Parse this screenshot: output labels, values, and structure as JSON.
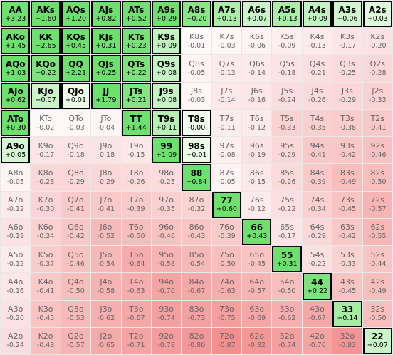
{
  "grid": {
    "rows": [
      [
        {
          "hand": "AA",
          "ev": "+3.23",
          "selected": true
        },
        {
          "hand": "AKs",
          "ev": "+1.60",
          "selected": true
        },
        {
          "hand": "AQs",
          "ev": "+1.20",
          "selected": true
        },
        {
          "hand": "AJs",
          "ev": "+0.82",
          "selected": true
        },
        {
          "hand": "ATs",
          "ev": "+0.52",
          "selected": true
        },
        {
          "hand": "A9s",
          "ev": "+0.29",
          "selected": true
        },
        {
          "hand": "A8s",
          "ev": "+0.20",
          "selected": true
        },
        {
          "hand": "A7s",
          "ev": "+0.13",
          "selected": true
        },
        {
          "hand": "A6s",
          "ev": "+0.07",
          "selected": true
        },
        {
          "hand": "A5s",
          "ev": "+0.13",
          "selected": true
        },
        {
          "hand": "A4s",
          "ev": "+0.09",
          "selected": true
        },
        {
          "hand": "A3s",
          "ev": "+0.06",
          "selected": true
        },
        {
          "hand": "A2s",
          "ev": "+0.03",
          "selected": true
        }
      ],
      [
        {
          "hand": "AKo",
          "ev": "+1.45",
          "selected": true
        },
        {
          "hand": "KK",
          "ev": "+2.65",
          "selected": true
        },
        {
          "hand": "KQs",
          "ev": "+0.45",
          "selected": true
        },
        {
          "hand": "KJs",
          "ev": "+0.31",
          "selected": true
        },
        {
          "hand": "KTs",
          "ev": "+0.23",
          "selected": true
        },
        {
          "hand": "K9s",
          "ev": "+0.09",
          "selected": true
        },
        {
          "hand": "K8s",
          "ev": "-0.01",
          "selected": false
        },
        {
          "hand": "K7s",
          "ev": "-0.03",
          "selected": false
        },
        {
          "hand": "K6s",
          "ev": "-0.06",
          "selected": false
        },
        {
          "hand": "K5s",
          "ev": "-0.09",
          "selected": false
        },
        {
          "hand": "K4s",
          "ev": "-0.13",
          "selected": false
        },
        {
          "hand": "K3s",
          "ev": "-0.17",
          "selected": false
        },
        {
          "hand": "K2s",
          "ev": "-0.20",
          "selected": false
        }
      ],
      [
        {
          "hand": "AQo",
          "ev": "+1.03",
          "selected": true
        },
        {
          "hand": "KQo",
          "ev": "+0.22",
          "selected": true
        },
        {
          "hand": "QQ",
          "ev": "+2.21",
          "selected": true
        },
        {
          "hand": "QJs",
          "ev": "+0.25",
          "selected": true
        },
        {
          "hand": "QTs",
          "ev": "+0.22",
          "selected": true
        },
        {
          "hand": "Q9s",
          "ev": "+0.08",
          "selected": true
        },
        {
          "hand": "Q8s",
          "ev": "-0.05",
          "selected": false
        },
        {
          "hand": "Q7s",
          "ev": "-0.13",
          "selected": false
        },
        {
          "hand": "Q6s",
          "ev": "-0.14",
          "selected": false
        },
        {
          "hand": "Q5s",
          "ev": "-0.18",
          "selected": false
        },
        {
          "hand": "Q4s",
          "ev": "-0.21",
          "selected": false
        },
        {
          "hand": "Q3s",
          "ev": "-0.25",
          "selected": false
        },
        {
          "hand": "Q2s",
          "ev": "-0.28",
          "selected": false
        }
      ],
      [
        {
          "hand": "AJo",
          "ev": "+0.62",
          "selected": true
        },
        {
          "hand": "KJo",
          "ev": "+0.07",
          "selected": true
        },
        {
          "hand": "QJo",
          "ev": "+0.01",
          "selected": true
        },
        {
          "hand": "JJ",
          "ev": "+1.79",
          "selected": true
        },
        {
          "hand": "JTs",
          "ev": "+0.21",
          "selected": true
        },
        {
          "hand": "J9s",
          "ev": "+0.08",
          "selected": true
        },
        {
          "hand": "J8s",
          "ev": "-0.03",
          "selected": false
        },
        {
          "hand": "J7s",
          "ev": "-0.14",
          "selected": false
        },
        {
          "hand": "J6s",
          "ev": "-0.16",
          "selected": false
        },
        {
          "hand": "J5s",
          "ev": "-0.24",
          "selected": false
        },
        {
          "hand": "J4s",
          "ev": "-0.26",
          "selected": false
        },
        {
          "hand": "J3s",
          "ev": "-0.29",
          "selected": false
        },
        {
          "hand": "J2s",
          "ev": "-0.33",
          "selected": false
        }
      ],
      [
        {
          "hand": "ATo",
          "ev": "+0.30",
          "selected": true
        },
        {
          "hand": "KTo",
          "ev": "-0.02",
          "selected": false
        },
        {
          "hand": "QTo",
          "ev": "-0.03",
          "selected": false
        },
        {
          "hand": "JTo",
          "ev": "-0.04",
          "selected": false
        },
        {
          "hand": "TT",
          "ev": "+1.44",
          "selected": true
        },
        {
          "hand": "T9s",
          "ev": "+0.11",
          "selected": true
        },
        {
          "hand": "T8s",
          "ev": "-0.00",
          "selected": true
        },
        {
          "hand": "T7s",
          "ev": "-0.11",
          "selected": false
        },
        {
          "hand": "T6s",
          "ev": "-0.12",
          "selected": false
        },
        {
          "hand": "T5s",
          "ev": "-0.33",
          "selected": false
        },
        {
          "hand": "T4s",
          "ev": "-0.35",
          "selected": false
        },
        {
          "hand": "T3s",
          "ev": "-0.38",
          "selected": false
        },
        {
          "hand": "T2s",
          "ev": "-0.41",
          "selected": false
        }
      ],
      [
        {
          "hand": "A9o",
          "ev": "+0.05",
          "selected": true
        },
        {
          "hand": "K9o",
          "ev": "-0.17",
          "selected": false
        },
        {
          "hand": "Q9o",
          "ev": "-0.18",
          "selected": false
        },
        {
          "hand": "J9o",
          "ev": "-0.18",
          "selected": false
        },
        {
          "hand": "T9o",
          "ev": "-0.15",
          "selected": false
        },
        {
          "hand": "99",
          "ev": "+1.09",
          "selected": true
        },
        {
          "hand": "98s",
          "ev": "+0.01",
          "selected": true
        },
        {
          "hand": "97s",
          "ev": "-0.08",
          "selected": false
        },
        {
          "hand": "96s",
          "ev": "-0.19",
          "selected": false
        },
        {
          "hand": "95s",
          "ev": "-0.29",
          "selected": false
        },
        {
          "hand": "94s",
          "ev": "-0.41",
          "selected": false
        },
        {
          "hand": "93s",
          "ev": "-0.42",
          "selected": false
        },
        {
          "hand": "92s",
          "ev": "-0.46",
          "selected": false
        }
      ],
      [
        {
          "hand": "A8o",
          "ev": "-0.05",
          "selected": false
        },
        {
          "hand": "K8o",
          "ev": "-0.28",
          "selected": false
        },
        {
          "hand": "Q8o",
          "ev": "-0.29",
          "selected": false
        },
        {
          "hand": "J8o",
          "ev": "-0.29",
          "selected": false
        },
        {
          "hand": "T8o",
          "ev": "-0.26",
          "selected": false
        },
        {
          "hand": "98o",
          "ev": "-0.25",
          "selected": false
        },
        {
          "hand": "88",
          "ev": "+0.84",
          "selected": true
        },
        {
          "hand": "87s",
          "ev": "-0.05",
          "selected": false
        },
        {
          "hand": "86s",
          "ev": "-0.15",
          "selected": false
        },
        {
          "hand": "85s",
          "ev": "-0.26",
          "selected": false
        },
        {
          "hand": "84s",
          "ev": "-0.39",
          "selected": false
        },
        {
          "hand": "83s",
          "ev": "-0.49",
          "selected": false
        },
        {
          "hand": "82s",
          "ev": "-0.50",
          "selected": false
        }
      ],
      [
        {
          "hand": "A7o",
          "ev": "-0.12",
          "selected": false
        },
        {
          "hand": "K7o",
          "ev": "-0.30",
          "selected": false
        },
        {
          "hand": "Q7o",
          "ev": "-0.41",
          "selected": false
        },
        {
          "hand": "J7o",
          "ev": "-0.41",
          "selected": false
        },
        {
          "hand": "T7o",
          "ev": "-0.39",
          "selected": false
        },
        {
          "hand": "97o",
          "ev": "-0.35",
          "selected": false
        },
        {
          "hand": "87o",
          "ev": "-0.32",
          "selected": false
        },
        {
          "hand": "77",
          "ev": "+0.60",
          "selected": true
        },
        {
          "hand": "76s",
          "ev": "-0.12",
          "selected": false
        },
        {
          "hand": "75s",
          "ev": "-0.22",
          "selected": false
        },
        {
          "hand": "74s",
          "ev": "-0.34",
          "selected": false
        },
        {
          "hand": "73s",
          "ev": "-0.45",
          "selected": false
        },
        {
          "hand": "72s",
          "ev": "-0.57",
          "selected": false
        }
      ],
      [
        {
          "hand": "A6o",
          "ev": "-0.19",
          "selected": false
        },
        {
          "hand": "K6o",
          "ev": "-0.34",
          "selected": false
        },
        {
          "hand": "Q6o",
          "ev": "-0.42",
          "selected": false
        },
        {
          "hand": "J6o",
          "ev": "-0.52",
          "selected": false
        },
        {
          "hand": "T6o",
          "ev": "-0.50",
          "selected": false
        },
        {
          "hand": "96o",
          "ev": "-0.46",
          "selected": false
        },
        {
          "hand": "86o",
          "ev": "-0.43",
          "selected": false
        },
        {
          "hand": "76o",
          "ev": "-0.39",
          "selected": false
        },
        {
          "hand": "66",
          "ev": "+0.43",
          "selected": true
        },
        {
          "hand": "65s",
          "ev": "-0.17",
          "selected": false
        },
        {
          "hand": "64s",
          "ev": "-0.29",
          "selected": false
        },
        {
          "hand": "63s",
          "ev": "-0.42",
          "selected": false
        },
        {
          "hand": "62s",
          "ev": "-0.55",
          "selected": false
        }
      ],
      [
        {
          "hand": "A5o",
          "ev": "-0.12",
          "selected": false
        },
        {
          "hand": "K5o",
          "ev": "-0.37",
          "selected": false
        },
        {
          "hand": "Q5o",
          "ev": "-0.46",
          "selected": false
        },
        {
          "hand": "J5o",
          "ev": "-0.54",
          "selected": false
        },
        {
          "hand": "T5o",
          "ev": "-0.64",
          "selected": false
        },
        {
          "hand": "95o",
          "ev": "-0.58",
          "selected": false
        },
        {
          "hand": "85o",
          "ev": "-0.54",
          "selected": false
        },
        {
          "hand": "75o",
          "ev": "-0.50",
          "selected": false
        },
        {
          "hand": "65o",
          "ev": "-0.45",
          "selected": false
        },
        {
          "hand": "55",
          "ev": "+0.31",
          "selected": true
        },
        {
          "hand": "54s",
          "ev": "-0.22",
          "selected": false
        },
        {
          "hand": "53s",
          "ev": "-0.33",
          "selected": false
        },
        {
          "hand": "52s",
          "ev": "-0.44",
          "selected": false
        }
      ],
      [
        {
          "hand": "A4o",
          "ev": "-0.16",
          "selected": false
        },
        {
          "hand": "K4o",
          "ev": "-0.41",
          "selected": false
        },
        {
          "hand": "Q4o",
          "ev": "-0.50",
          "selected": false
        },
        {
          "hand": "J4o",
          "ev": "-0.58",
          "selected": false
        },
        {
          "hand": "T4o",
          "ev": "-0.63",
          "selected": false
        },
        {
          "hand": "94o",
          "ev": "-0.70",
          "selected": false
        },
        {
          "hand": "84o",
          "ev": "-0.67",
          "selected": false
        },
        {
          "hand": "74o",
          "ev": "-0.63",
          "selected": false
        },
        {
          "hand": "64o",
          "ev": "-0.57",
          "selected": false
        },
        {
          "hand": "54o",
          "ev": "-0.50",
          "selected": false
        },
        {
          "hand": "44",
          "ev": "+0.22",
          "selected": true
        },
        {
          "hand": "43s",
          "ev": "-0.45",
          "selected": false
        },
        {
          "hand": "42s",
          "ev": "-0.49",
          "selected": false
        }
      ],
      [
        {
          "hand": "A3o",
          "ev": "-0.20",
          "selected": false
        },
        {
          "hand": "K3o",
          "ev": "-0.45",
          "selected": false
        },
        {
          "hand": "Q3o",
          "ev": "-0.53",
          "selected": false
        },
        {
          "hand": "J3o",
          "ev": "-0.62",
          "selected": false
        },
        {
          "hand": "T3o",
          "ev": "-0.67",
          "selected": false
        },
        {
          "hand": "93o",
          "ev": "-0.74",
          "selected": false
        },
        {
          "hand": "83o",
          "ev": "-0.73",
          "selected": false
        },
        {
          "hand": "73o",
          "ev": "-0.75",
          "selected": false
        },
        {
          "hand": "63o",
          "ev": "-0.69",
          "selected": false
        },
        {
          "hand": "53o",
          "ev": "-0.62",
          "selected": false
        },
        {
          "hand": "43o",
          "ev": "-0.67",
          "selected": false
        },
        {
          "hand": "33",
          "ev": "+0.14",
          "selected": true
        },
        {
          "hand": "32s",
          "ev": "-0.50",
          "selected": false
        }
      ],
      [
        {
          "hand": "A2o",
          "ev": "-0.24",
          "selected": false
        },
        {
          "hand": "K2o",
          "ev": "-0.48",
          "selected": false
        },
        {
          "hand": "Q2o",
          "ev": "-0.57",
          "selected": false
        },
        {
          "hand": "J2o",
          "ev": "-0.65",
          "selected": false
        },
        {
          "hand": "T2o",
          "ev": "-0.71",
          "selected": false
        },
        {
          "hand": "92o",
          "ev": "-0.78",
          "selected": false
        },
        {
          "hand": "82o",
          "ev": "-0.80",
          "selected": false
        },
        {
          "hand": "72o",
          "ev": "-0.87",
          "selected": false
        },
        {
          "hand": "62o",
          "ev": "-0.82",
          "selected": false
        },
        {
          "hand": "52o",
          "ev": "-0.74",
          "selected": false
        },
        {
          "hand": "42o",
          "ev": "-0.70",
          "selected": false
        },
        {
          "hand": "32o",
          "ev": "-0.83",
          "selected": false
        },
        {
          "hand": "22",
          "ev": "+0.07",
          "selected": true
        }
      ]
    ]
  }
}
